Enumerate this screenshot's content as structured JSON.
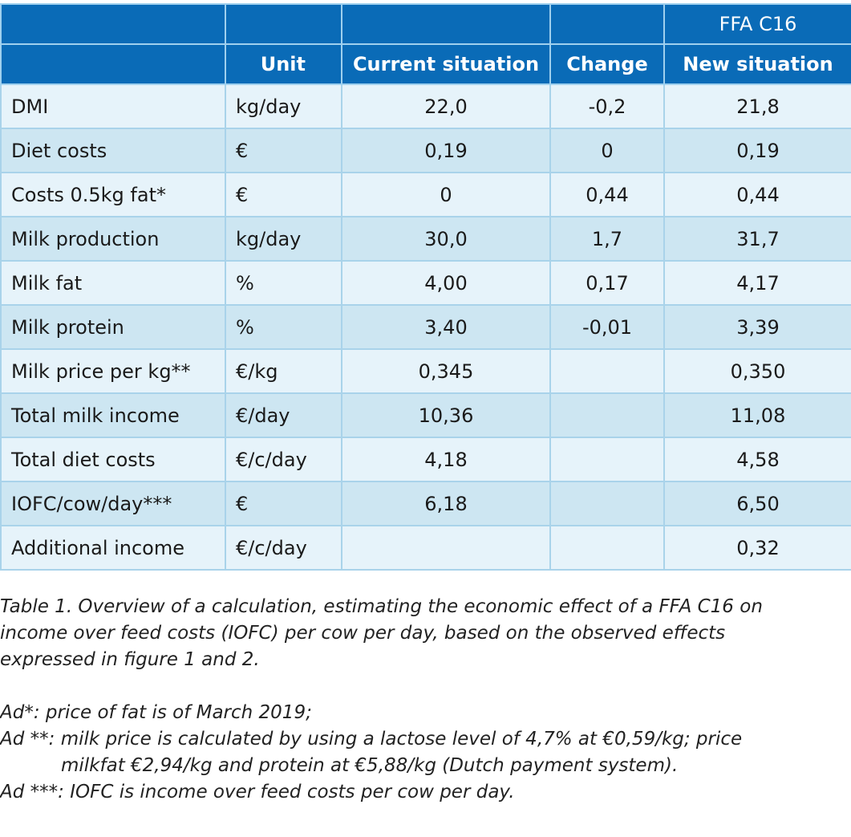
{
  "table": {
    "group_header": "FFA C16",
    "headers": {
      "label": "",
      "unit": "Unit",
      "current": "Current situation",
      "change": "Change",
      "new": "New situation"
    },
    "rows": [
      {
        "label": "DMI",
        "unit": "kg/day",
        "current": "22,0",
        "change": "-0,2",
        "new": "21,8"
      },
      {
        "label": "Diet costs",
        "unit": "€",
        "current": "0,19",
        "change": "0",
        "new": "0,19"
      },
      {
        "label": "Costs 0.5kg fat*",
        "unit": "€",
        "current": "0",
        "change": "0,44",
        "new": "0,44"
      },
      {
        "label": "Milk production",
        "unit": "kg/day",
        "current": "30,0",
        "change": "1,7",
        "new": "31,7"
      },
      {
        "label": "Milk fat",
        "unit": "%",
        "current": "4,00",
        "change": "0,17",
        "new": "4,17"
      },
      {
        "label": "Milk protein",
        "unit": "%",
        "current": "3,40",
        "change": "-0,01",
        "new": "3,39"
      },
      {
        "label": "Milk price per kg**",
        "unit": "€/kg",
        "current": "0,345",
        "change": "",
        "new": "0,350"
      },
      {
        "label": "Total milk income",
        "unit": "€/day",
        "current": "10,36",
        "change": "",
        "new": "11,08"
      },
      {
        "label": "Total diet costs",
        "unit": "€/c/day",
        "current": "4,18",
        "change": "",
        "new": "4,58"
      },
      {
        "label": "IOFC/cow/day***",
        "unit": "€",
        "current": "6,18",
        "change": "",
        "new": "6,50"
      },
      {
        "label": "Additional income",
        "unit": "€/c/day",
        "current": "",
        "change": "",
        "new": "0,32"
      }
    ]
  },
  "notes": {
    "caption_line1": "Table 1. Overview of a calculation, estimating the economic effect of a FFA C16 on",
    "caption_line2": "income over  feed costs (IOFC) per cow per day, based on the observed effects",
    "caption_line3": "expressed in figure 1 and 2.",
    "ad1": "Ad*: price of fat is of March 2019;",
    "ad2_line1": "Ad **: milk price is calculated by using a lactose level of 4,7% at €0,59/kg; price",
    "ad2_line2": "milkfat €2,94/kg and protein at €5,88/kg (Dutch payment system).",
    "ad3": "Ad ***: IOFC is income over feed costs per cow per day."
  },
  "colors": {
    "header_bg": "#0a6bb7",
    "row_light": "#e6f3fa",
    "row_dark": "#cde6f2",
    "border": "#a9d3ea"
  }
}
